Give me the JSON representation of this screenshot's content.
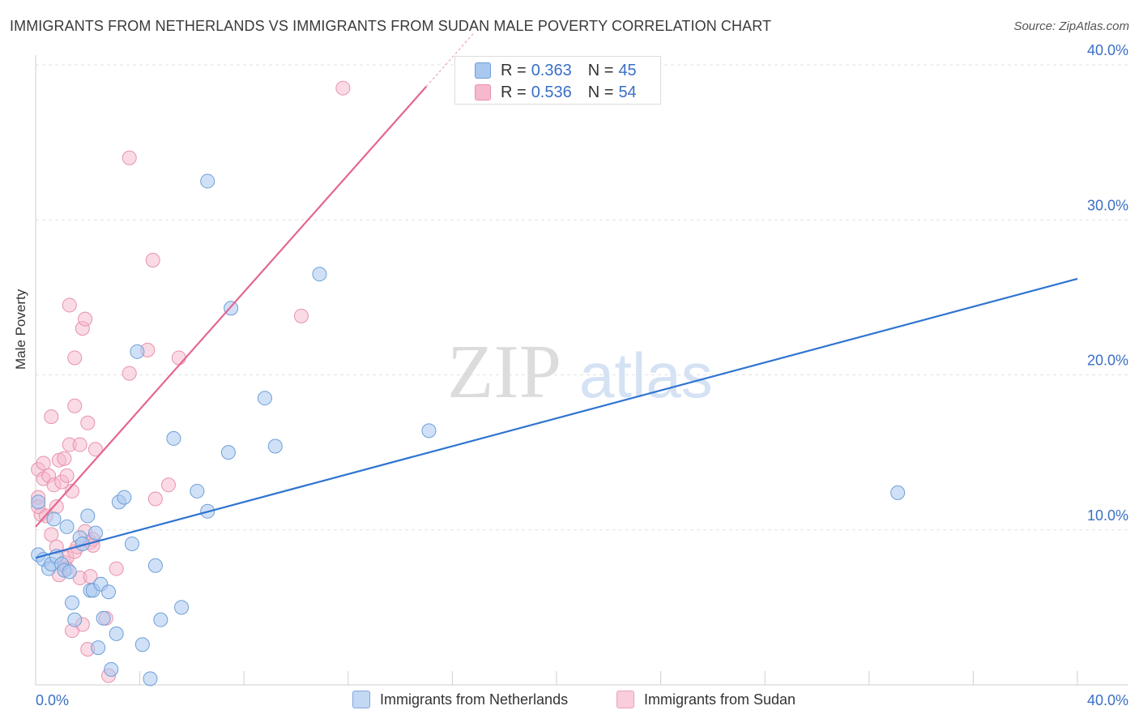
{
  "header": {
    "title": "IMMIGRANTS FROM NETHERLANDS VS IMMIGRANTS FROM SUDAN MALE POVERTY CORRELATION CHART",
    "source": "Source: ZipAtlas.com"
  },
  "watermark": {
    "zip": "ZIP",
    "atlas": "atlas"
  },
  "legend": {
    "items": [
      {
        "r_label": "R =",
        "r_value": "0.363",
        "n_label": "N =",
        "n_value": "45"
      },
      {
        "r_label": "R =",
        "r_value": "0.536",
        "n_label": "N =",
        "n_value": "54"
      }
    ]
  },
  "colors": {
    "netherlands_fill": "#a9c8f0",
    "netherlands_stroke": "#6e9fd8",
    "netherlands_line": "#2f74d0",
    "sudan_fill": "#f6b8cc",
    "sudan_stroke": "#e891ad",
    "sudan_line": "#e46690",
    "tick_label": "#3a6fc4",
    "grid": "#e2e2e2"
  },
  "chart_data": {
    "type": "scatter",
    "title": "IMMIGRANTS FROM NETHERLANDS VS IMMIGRANTS FROM SUDAN MALE POVERTY CORRELATION CHART",
    "xlabel": "",
    "ylabel": "Male Poverty",
    "xlim": [
      0,
      40
    ],
    "ylim": [
      0,
      40
    ],
    "x_tick_labels": [
      "0.0%",
      "40.0%"
    ],
    "y_ticks": [
      10,
      20,
      30,
      40
    ],
    "y_tick_labels": [
      "10.0%",
      "20.0%",
      "30.0%",
      "40.0%"
    ],
    "grid": true,
    "legend_position": "top-center",
    "series": [
      {
        "name": "Immigrants from Netherlands",
        "color": "#a9c8f0",
        "r": 0.363,
        "n": 45,
        "trend": {
          "x": [
            0,
            40
          ],
          "y": [
            8.2,
            26.2
          ]
        },
        "points": [
          [
            0.1,
            11.8
          ],
          [
            0.1,
            8.4
          ],
          [
            0.3,
            8.1
          ],
          [
            0.5,
            7.5
          ],
          [
            0.6,
            7.8
          ],
          [
            0.7,
            10.7
          ],
          [
            0.8,
            8.3
          ],
          [
            1.0,
            7.8
          ],
          [
            1.1,
            7.4
          ],
          [
            1.2,
            10.2
          ],
          [
            1.3,
            7.3
          ],
          [
            1.4,
            5.3
          ],
          [
            1.5,
            4.2
          ],
          [
            1.7,
            9.5
          ],
          [
            1.8,
            9.1
          ],
          [
            2.0,
            10.9
          ],
          [
            2.1,
            6.1
          ],
          [
            2.2,
            6.1
          ],
          [
            2.3,
            9.8
          ],
          [
            2.4,
            2.4
          ],
          [
            2.5,
            6.5
          ],
          [
            2.6,
            4.3
          ],
          [
            2.8,
            6.0
          ],
          [
            2.9,
            1.0
          ],
          [
            3.1,
            3.3
          ],
          [
            3.2,
            11.8
          ],
          [
            3.4,
            12.1
          ],
          [
            3.7,
            9.1
          ],
          [
            3.9,
            21.5
          ],
          [
            4.1,
            2.6
          ],
          [
            4.4,
            0.4
          ],
          [
            4.6,
            7.7
          ],
          [
            4.8,
            4.2
          ],
          [
            5.3,
            15.9
          ],
          [
            5.6,
            5.0
          ],
          [
            6.2,
            12.5
          ],
          [
            6.6,
            11.2
          ],
          [
            6.6,
            32.5
          ],
          [
            7.4,
            15.0
          ],
          [
            7.5,
            24.3
          ],
          [
            8.8,
            18.5
          ],
          [
            9.2,
            15.4
          ],
          [
            10.9,
            26.5
          ],
          [
            15.1,
            16.4
          ],
          [
            33.1,
            12.4
          ]
        ]
      },
      {
        "name": "Immigrants from Sudan",
        "color": "#f6b8cc",
        "r": 0.536,
        "n": 54,
        "trend": {
          "x": [
            0,
            15.0
          ],
          "y": [
            10.2,
            38.6
          ]
        },
        "points": [
          [
            0.1,
            13.9
          ],
          [
            0.1,
            12.1
          ],
          [
            0.2,
            11.0
          ],
          [
            0.3,
            13.3
          ],
          [
            0.4,
            10.9
          ],
          [
            0.5,
            13.5
          ],
          [
            0.6,
            17.3
          ],
          [
            0.6,
            9.7
          ],
          [
            0.7,
            12.9
          ],
          [
            0.8,
            11.5
          ],
          [
            0.8,
            8.9
          ],
          [
            0.9,
            14.5
          ],
          [
            0.9,
            7.1
          ],
          [
            1.0,
            13.1
          ],
          [
            1.1,
            7.9
          ],
          [
            1.1,
            14.6
          ],
          [
            1.2,
            8.2
          ],
          [
            1.2,
            13.5
          ],
          [
            1.2,
            7.5
          ],
          [
            1.3,
            15.5
          ],
          [
            1.3,
            24.5
          ],
          [
            1.4,
            12.5
          ],
          [
            1.4,
            3.5
          ],
          [
            1.5,
            8.6
          ],
          [
            1.5,
            21.1
          ],
          [
            1.5,
            18.0
          ],
          [
            1.6,
            8.9
          ],
          [
            1.7,
            6.9
          ],
          [
            1.7,
            15.5
          ],
          [
            1.8,
            23.0
          ],
          [
            1.8,
            3.9
          ],
          [
            1.9,
            23.6
          ],
          [
            1.9,
            9.9
          ],
          [
            2.0,
            16.9
          ],
          [
            2.0,
            2.3
          ],
          [
            2.1,
            9.2
          ],
          [
            2.1,
            7.0
          ],
          [
            2.2,
            9.4
          ],
          [
            2.2,
            9.0
          ],
          [
            2.3,
            15.2
          ],
          [
            2.7,
            4.3
          ],
          [
            2.8,
            0.6
          ],
          [
            3.1,
            7.5
          ],
          [
            3.6,
            34.0
          ],
          [
            3.6,
            20.1
          ],
          [
            4.3,
            21.6
          ],
          [
            4.5,
            27.4
          ],
          [
            4.6,
            12.0
          ],
          [
            5.1,
            12.9
          ],
          [
            5.5,
            21.1
          ],
          [
            10.2,
            23.8
          ],
          [
            11.8,
            38.5
          ],
          [
            0.1,
            11.5
          ],
          [
            0.3,
            14.3
          ]
        ]
      }
    ]
  },
  "bottom_legend": {
    "netherlands_label": "Immigrants from Netherlands",
    "sudan_label": "Immigrants from Sudan"
  }
}
